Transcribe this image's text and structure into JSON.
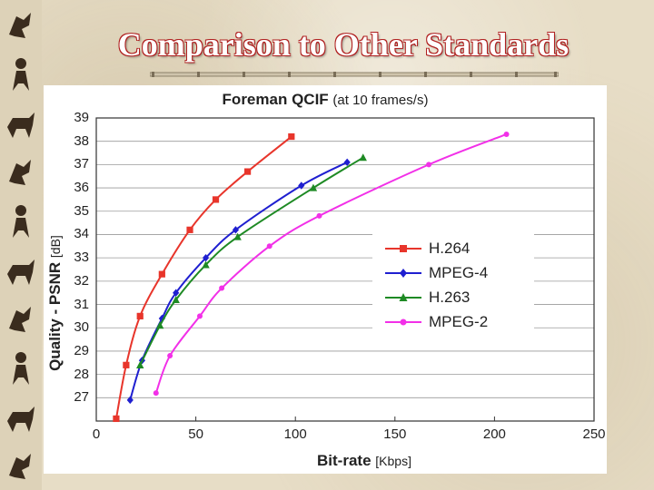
{
  "slide": {
    "title": "Comparison to Other Standards"
  },
  "colors": {
    "title_outline": "#b02020",
    "h264": "#e8352b",
    "mpeg4": "#1f1fd0",
    "h263": "#1e8a24",
    "mpeg2": "#f230e8"
  },
  "chart_data": {
    "type": "line",
    "title": "Foreman QCIF",
    "subtitle": "(at 10 frames/s)",
    "xlabel": "Bit-rate",
    "xunit": "[Kbps]",
    "ylabel": "Quality - PSNR",
    "yunit": "[dB]",
    "xlim": [
      0,
      250
    ],
    "ylim": [
      26,
      39
    ],
    "xticks": [
      0,
      50,
      100,
      150,
      200,
      250
    ],
    "yticks": [
      27,
      28,
      29,
      30,
      31,
      32,
      33,
      34,
      35,
      36,
      37,
      38,
      39
    ],
    "grid": "horizontal",
    "legend_position": "center-right",
    "series": [
      {
        "name": "H.264",
        "color_key": "h264",
        "marker": "square",
        "x": [
          10,
          15,
          22,
          33,
          47,
          60,
          76,
          98
        ],
        "y": [
          26.1,
          28.4,
          30.5,
          32.3,
          34.2,
          35.5,
          36.7,
          38.2
        ]
      },
      {
        "name": "MPEG-4",
        "color_key": "mpeg4",
        "marker": "diamond",
        "x": [
          17,
          23,
          33,
          40,
          55,
          70,
          103,
          126
        ],
        "y": [
          26.9,
          28.6,
          30.4,
          31.5,
          33.0,
          34.2,
          36.1,
          37.1
        ]
      },
      {
        "name": "H.263",
        "color_key": "h263",
        "marker": "triangle",
        "x": [
          22,
          32,
          40,
          55,
          71,
          109,
          134
        ],
        "y": [
          28.4,
          30.1,
          31.2,
          32.7,
          33.9,
          36.0,
          37.3
        ]
      },
      {
        "name": "MPEG-2",
        "color_key": "mpeg2",
        "marker": "circle",
        "x": [
          30,
          37,
          52,
          63,
          87,
          112,
          167,
          206
        ],
        "y": [
          27.2,
          28.8,
          30.5,
          31.7,
          33.5,
          34.8,
          37.0,
          38.3
        ]
      }
    ]
  }
}
